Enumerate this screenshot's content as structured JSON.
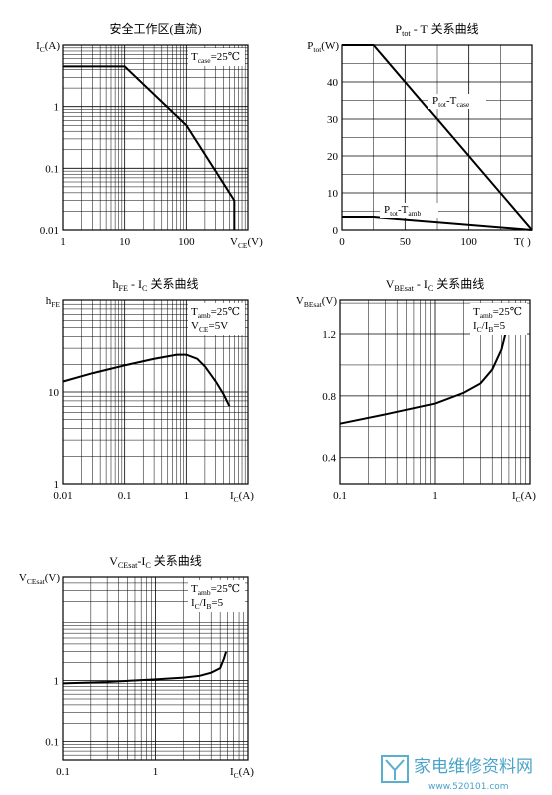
{
  "chart_data": [
    {
      "type": "line",
      "title": [
        "安全工作区(直流)"
      ],
      "ylabel": [
        "I",
        "C",
        "(A)"
      ],
      "xlabel": [
        "V",
        "CE",
        "(V)"
      ],
      "xlog": true,
      "ylog": true,
      "xlim": [
        1,
        1000
      ],
      "ylim": [
        0.01,
        10
      ],
      "xticks": [
        1,
        10,
        100
      ],
      "yticks": [
        0.01,
        0.1,
        1
      ],
      "grid": true,
      "annotations": [
        [
          "T",
          "case",
          "=25℃"
        ]
      ],
      "series": [
        {
          "color": "#000000",
          "x": [
            1,
            10,
            100,
            600,
            600
          ],
          "values": [
            4.5,
            4.5,
            0.5,
            0.03,
            0.01
          ]
        }
      ]
    },
    {
      "type": "line",
      "title": [
        "P",
        "tot",
        " - T  关系曲线"
      ],
      "ylabel": [
        "P",
        "tot",
        "(W)"
      ],
      "xlabel": [
        "T(   )"
      ],
      "xlog": false,
      "ylog": false,
      "xlim": [
        0,
        150
      ],
      "ylim": [
        0,
        50
      ],
      "xticks": [
        0,
        50,
        100
      ],
      "yticks": [
        0,
        10,
        20,
        30,
        40
      ],
      "grid": true,
      "annotations": [],
      "series": [
        {
          "name": [
            "P",
            "tot",
            "-T",
            "case"
          ],
          "color": "#000000",
          "x": [
            0,
            25,
            150
          ],
          "values": [
            50,
            50,
            0
          ]
        },
        {
          "name": [
            "P",
            "tot",
            "-T",
            "amb"
          ],
          "color": "#000000",
          "x": [
            0,
            25,
            150
          ],
          "values": [
            3.5,
            3.5,
            0
          ]
        }
      ]
    },
    {
      "type": "line",
      "title": [
        "h",
        "FE",
        " - I",
        "C",
        " 关系曲线"
      ],
      "ylabel": [
        "h",
        "FE"
      ],
      "xlabel": [
        "I",
        "C",
        "(A)"
      ],
      "xlog": true,
      "ylog": true,
      "xlim": [
        0.01,
        10
      ],
      "ylim": [
        1,
        100
      ],
      "xticks": [
        0.01,
        0.1,
        1
      ],
      "yticks": [
        1,
        10
      ],
      "grid": true,
      "annotations": [
        [
          "T",
          "amb",
          "=25℃"
        ],
        [
          "V",
          "CE",
          "=5V"
        ]
      ],
      "series": [
        {
          "color": "#000000",
          "x": [
            0.01,
            0.03,
            0.1,
            0.3,
            0.7,
            1,
            1.5,
            2,
            3,
            4,
            5
          ],
          "values": [
            13,
            16,
            19.5,
            23,
            25.5,
            25.5,
            23,
            19,
            13,
            9.5,
            7
          ]
        }
      ]
    },
    {
      "type": "line",
      "title": [
        "V",
        "BEsat",
        " - I",
        "C",
        " 关系曲线"
      ],
      "ylabel": [
        "V",
        "BEsat",
        "(V)"
      ],
      "xlabel": [
        "I",
        "C",
        "(A)"
      ],
      "xlog": true,
      "ylog": false,
      "xlim": [
        0.1,
        10
      ],
      "ylim": [
        0.23,
        1.42
      ],
      "xticks": [
        0.1,
        1
      ],
      "yticks": [
        0.4,
        0.8,
        1.2
      ],
      "grid": true,
      "annotations": [
        [
          "T",
          "amb",
          "=25℃"
        ],
        [
          "I",
          "C",
          "/I",
          "B",
          "=5"
        ]
      ],
      "series": [
        {
          "color": "#000000",
          "x": [
            0.1,
            0.3,
            1,
            2,
            3,
            4,
            5,
            5.5
          ],
          "values": [
            0.62,
            0.68,
            0.75,
            0.82,
            0.88,
            0.97,
            1.1,
            1.2
          ]
        }
      ]
    },
    {
      "type": "line",
      "title": [
        "V",
        "CEsat",
        "-I",
        "C",
        " 关系曲线"
      ],
      "ylabel": [
        "V",
        "CEsat",
        "(V)"
      ],
      "xlabel": [
        "I",
        "C",
        "(A)"
      ],
      "xlog": true,
      "ylog": true,
      "xlim": [
        0.1,
        10
      ],
      "ylim": [
        0.05,
        50
      ],
      "xticks": [
        0.1,
        1
      ],
      "yticks": [
        0.1,
        1
      ],
      "grid": true,
      "annotations": [
        [
          "T",
          "amb",
          "=25℃"
        ],
        [
          "I",
          "C",
          "/I",
          "B",
          "=5"
        ]
      ],
      "series": [
        {
          "color": "#000000",
          "x": [
            0.1,
            0.3,
            1,
            2,
            3,
            4,
            5,
            5.5,
            5.8
          ],
          "values": [
            0.9,
            0.95,
            1.05,
            1.12,
            1.2,
            1.35,
            1.6,
            2.3,
            3
          ]
        }
      ]
    }
  ],
  "watermark": {
    "text": "家电维修资料网",
    "url": "www.520101.com"
  }
}
